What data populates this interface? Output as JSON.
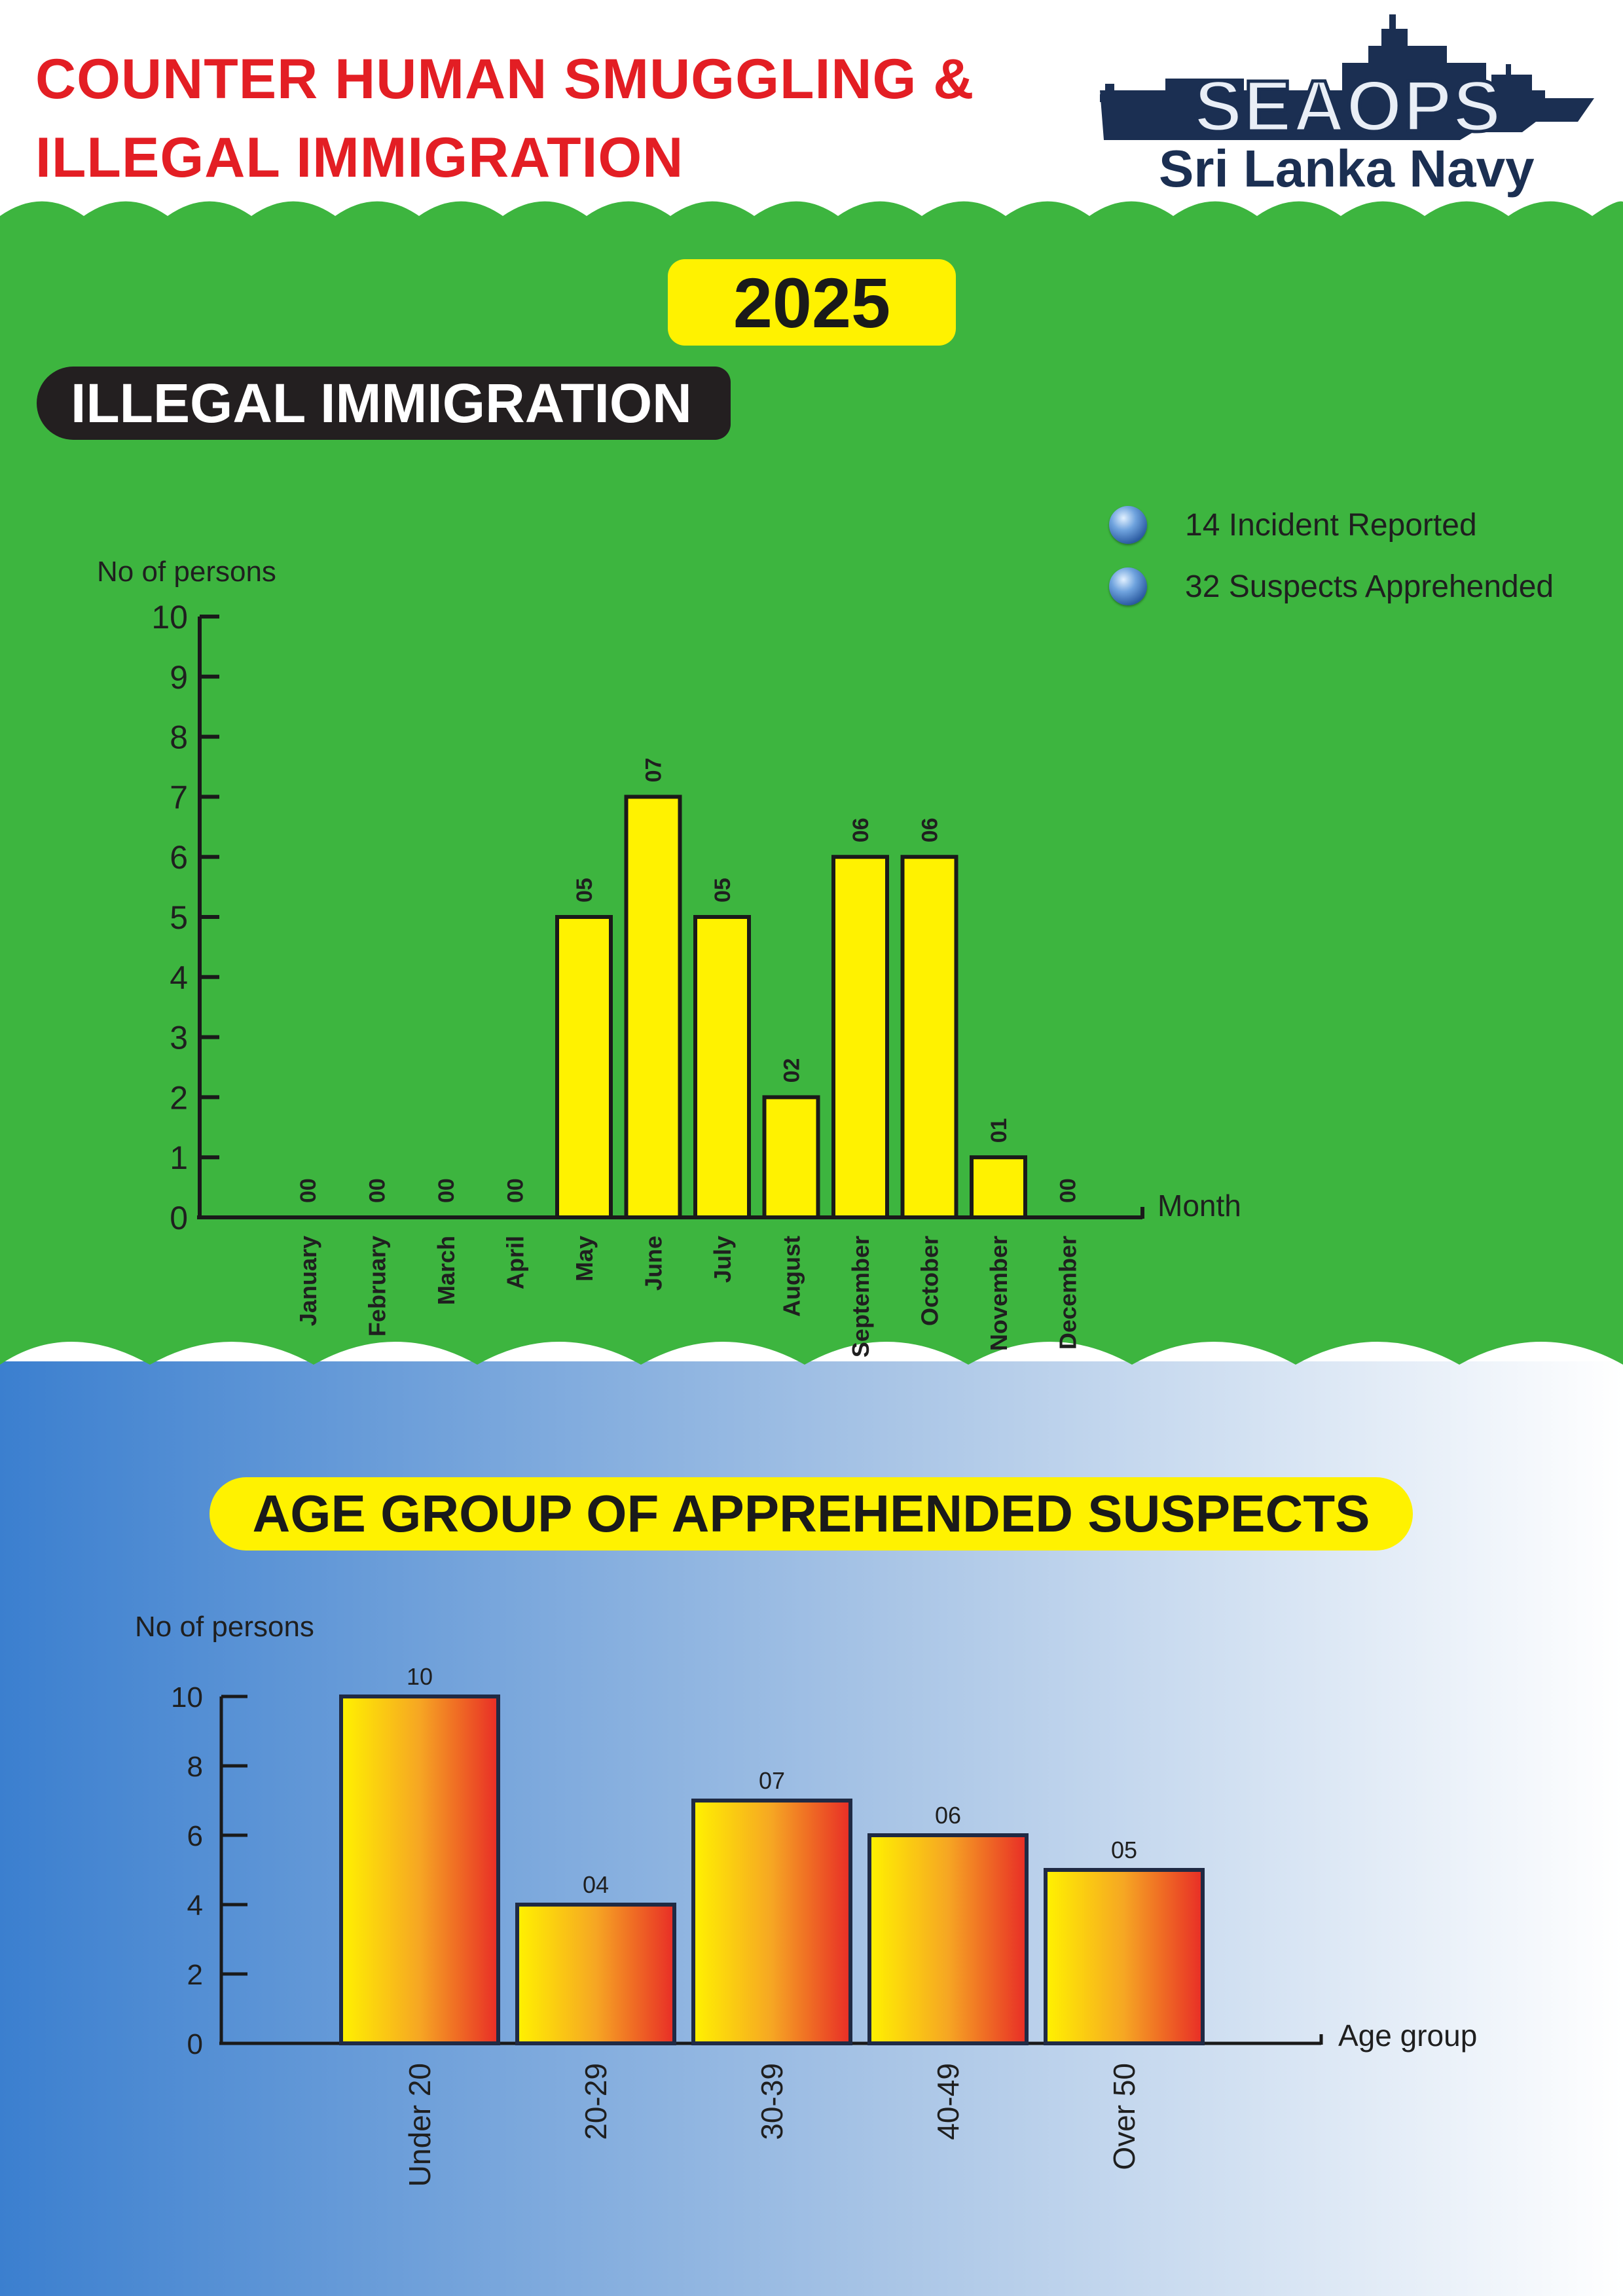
{
  "header": {
    "title_line1": "COUNTER HUMAN SMUGGLING  &",
    "title_line2": "ILLEGAL IMMIGRATION"
  },
  "logo": {
    "brand": "SEAOPS",
    "subtitle": "Sri Lanka Navy",
    "icon": "navy-ship-icon"
  },
  "year_label": "2025",
  "section_label": "ILLEGAL IMMIGRATION",
  "legend": [
    {
      "text": "14 Incident Reported",
      "icon": "blue-bullet-icon"
    },
    {
      "text": "32 Suspects Apprehended",
      "icon": "blue-bullet-icon"
    }
  ],
  "age_section_label": "AGE GROUP OF APPREHENDED SUSPECTS",
  "colors": {
    "green_background": "#3db53f",
    "yellow_bar": "#fff200",
    "title_red": "#e31e24",
    "navy": "#1b2f52",
    "gradient_blue": "#3b7fcf"
  },
  "chart_data": [
    {
      "type": "bar",
      "ylabel": "No of persons",
      "xlabel": "Month",
      "ylim": [
        0,
        10
      ],
      "yticks": [
        0,
        1,
        2,
        3,
        4,
        5,
        6,
        7,
        8,
        9,
        10
      ],
      "categories": [
        "January",
        "February",
        "March",
        "April",
        "May",
        "June",
        "July",
        "August",
        "September",
        "October",
        "November",
        "December"
      ],
      "values": [
        0,
        0,
        0,
        0,
        5,
        7,
        5,
        2,
        6,
        6,
        1,
        0
      ],
      "data_labels": [
        "00",
        "00",
        "00",
        "00",
        "05",
        "07",
        "05",
        "02",
        "06",
        "06",
        "01",
        "00"
      ],
      "bar_color": "#fff200",
      "grid": false
    },
    {
      "type": "bar",
      "ylabel": "No of persons",
      "xlabel": "Age group",
      "ylim": [
        0,
        10
      ],
      "yticks": [
        0,
        2,
        4,
        6,
        8,
        10
      ],
      "categories": [
        "Under 20",
        "20-29",
        "30-39",
        "40-49",
        "Over 50"
      ],
      "values": [
        10,
        4,
        7,
        6,
        5
      ],
      "data_labels": [
        "10",
        "04",
        "07",
        "06",
        "05"
      ],
      "bar_colors": [
        "#fff200",
        "#f6a623",
        "#e82d26"
      ],
      "grid": false
    }
  ]
}
